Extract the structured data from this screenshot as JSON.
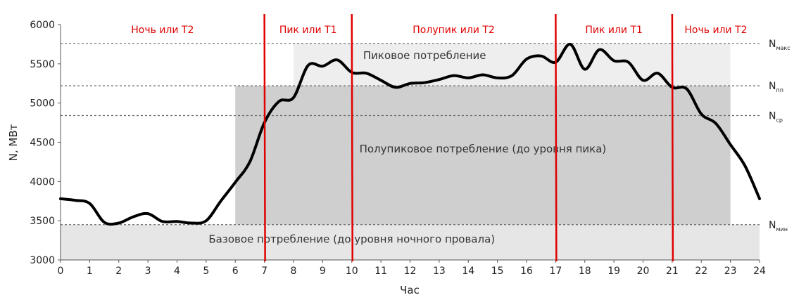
{
  "chart_data": {
    "type": "line",
    "xlabel": "Час",
    "ylabel": "N, МВт",
    "xlim": [
      0,
      24
    ],
    "ylim": [
      3000,
      6000
    ],
    "x_ticks": [
      "0",
      "1",
      "2",
      "3",
      "4",
      "5",
      "6",
      "7",
      "8",
      "9",
      "10",
      "11",
      "12",
      "13",
      "14",
      "15",
      "16",
      "17",
      "18",
      "19",
      "20",
      "21",
      "22",
      "23",
      "24"
    ],
    "y_ticks": [
      "3000",
      "3500",
      "4000",
      "4500",
      "5000",
      "5500",
      "6000"
    ],
    "x": [
      0,
      0.5,
      1,
      1.5,
      2,
      2.5,
      3,
      3.5,
      4,
      4.5,
      5,
      5.5,
      6,
      6.5,
      7,
      7.5,
      8,
      8.5,
      9,
      9.5,
      10,
      10.5,
      11,
      11.5,
      12,
      12.5,
      13,
      13.5,
      14,
      14.5,
      15,
      15.5,
      16,
      16.5,
      17,
      17.5,
      18,
      18.5,
      19,
      19.5,
      20,
      20.5,
      21,
      21.5,
      22,
      22.5,
      23,
      23.5,
      24
    ],
    "values": [
      3780,
      3760,
      3720,
      3480,
      3470,
      3550,
      3590,
      3490,
      3490,
      3470,
      3500,
      3750,
      3990,
      4250,
      4750,
      5020,
      5070,
      5480,
      5470,
      5550,
      5390,
      5380,
      5290,
      5200,
      5250,
      5260,
      5300,
      5350,
      5320,
      5360,
      5320,
      5350,
      5560,
      5600,
      5520,
      5750,
      5430,
      5680,
      5540,
      5520,
      5290,
      5380,
      5200,
      5180,
      4860,
      4740,
      4470,
      4200,
      3780
    ],
    "levels": [
      {
        "label": "N",
        "sub": "макс",
        "value": 5760
      },
      {
        "label": "N",
        "sub": "пп",
        "value": 5220
      },
      {
        "label": "N",
        "sub": "ср",
        "value": 4840
      },
      {
        "label": "N",
        "sub": "мин",
        "value": 3450
      }
    ],
    "regions": [
      {
        "label": "Пиковое потребление",
        "x_start": 8,
        "x_end": 23,
        "y_start": 5220,
        "y_end": 5760,
        "color": "#eeeeee",
        "label_x": 12.5,
        "label_y": 5560
      },
      {
        "label": "Полупиковое потребление (до уровня пика)",
        "x_start": 6,
        "x_end": 23,
        "y_start": 3450,
        "y_end": 5220,
        "color": "#cfcfcf",
        "label_x": 14.5,
        "label_y": 4370
      },
      {
        "label": "Базовое потребление (до уровня ночного провала)",
        "x_start": 0,
        "x_end": 24,
        "y_start": 3000,
        "y_end": 3450,
        "color": "#e6e6e6",
        "label_x": 10,
        "label_y": 3220
      }
    ],
    "zones": [
      {
        "label": "Ночь или Т2",
        "x_start": 0,
        "x_end": 7
      },
      {
        "label": "Пик или Т1",
        "x_start": 7,
        "x_end": 10
      },
      {
        "label": "Полупик или Т2",
        "x_start": 10,
        "x_end": 17
      },
      {
        "label": "Пик или Т1",
        "x_start": 17,
        "x_end": 21
      },
      {
        "label": "Ночь или Т2",
        "x_start": 21,
        "x_end": 24
      }
    ],
    "zone_boundaries": [
      7,
      10,
      17,
      21
    ],
    "colors": {
      "line": "#000000",
      "zone": "#e00000",
      "level": "#666666"
    }
  }
}
